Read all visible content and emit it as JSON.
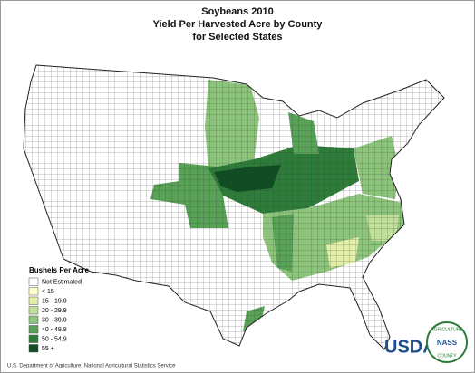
{
  "title": [
    "Soybeans 2010",
    "Yield Per Harvested Acre by County",
    "for Selected States"
  ],
  "legend": {
    "title": "Bushels Per Acre",
    "items": [
      {
        "label": "Not Estimated",
        "color": "#ffffff"
      },
      {
        "label": "< 15",
        "color": "#ffffcc"
      },
      {
        "label": "15 - 19.9",
        "color": "#e3efa6"
      },
      {
        "label": "20 - 29.9",
        "color": "#c0df98"
      },
      {
        "label": "30 - 39.9",
        "color": "#8dc47b"
      },
      {
        "label": "40 - 49.9",
        "color": "#58a257"
      },
      {
        "label": "50 - 54.9",
        "color": "#2e7c39"
      },
      {
        "label": "55 +",
        "color": "#0f4d22"
      }
    ]
  },
  "source": "U.S. Department of Agriculture, National Agricultural Statistics Service",
  "logo": {
    "text": "USDA",
    "ring_top": "AGRICULTURE",
    "ring_bottom": "COUNTY",
    "center": "NASS"
  }
}
